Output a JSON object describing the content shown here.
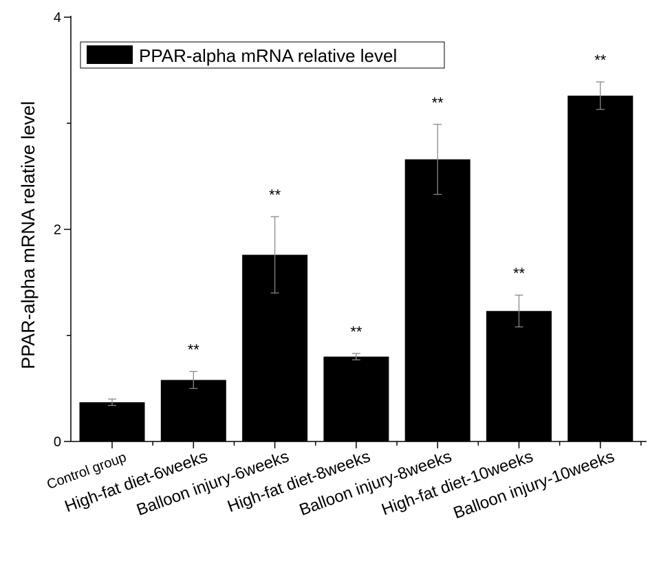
{
  "chart_data": {
    "type": "bar",
    "title": "",
    "xlabel": "",
    "ylabel": "PPAR-alpha mRNA relative level",
    "ylim": [
      0,
      4
    ],
    "yticks": [
      "0",
      "2",
      "4"
    ],
    "y_minor_ticks": [
      1,
      3
    ],
    "grid": false,
    "legend_placement": "top-left",
    "categories": [
      "Control group",
      "High-fat diet-6weeks",
      "Balloon injury-6weeks",
      "High-fat diet-8weeks",
      "Balloon injury-8weeks",
      "High-fat diet-10weeks",
      "Balloon injury-10weeks"
    ],
    "series": [
      {
        "name": "PPAR-alpha mRNA relative level",
        "color": "#000000",
        "values": [
          0.37,
          0.58,
          1.76,
          0.8,
          2.66,
          1.23,
          3.26
        ],
        "errors": [
          0.03,
          0.08,
          0.36,
          0.03,
          0.33,
          0.15,
          0.13
        ],
        "annotations": [
          "",
          "**",
          "**",
          "**",
          "**",
          "**",
          "**"
        ]
      }
    ]
  }
}
